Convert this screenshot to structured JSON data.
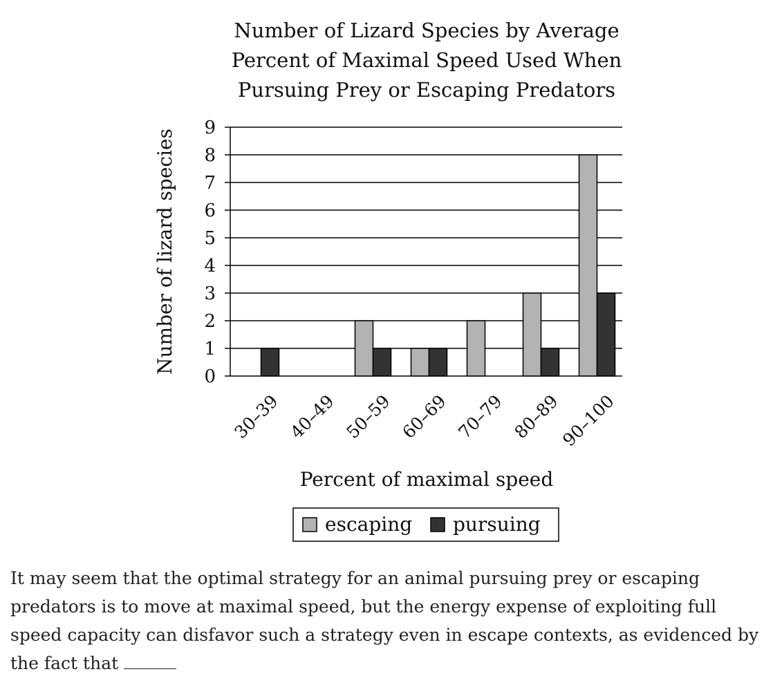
{
  "chart_data": {
    "type": "bar",
    "title_lines": [
      "Number of Lizard Species by Average",
      "Percent of Maximal Speed Used When",
      "Pursuing Prey or Escaping Predators"
    ],
    "xlabel": "Percent of maximal speed",
    "ylabel": "Number of lizard species",
    "categories": [
      "30–39",
      "40–49",
      "50–59",
      "60–69",
      "70–79",
      "80–89",
      "90–100"
    ],
    "series": [
      {
        "name": "escaping",
        "color": "#b3b3b3",
        "values": [
          0,
          0,
          2,
          1,
          2,
          3,
          8
        ]
      },
      {
        "name": "pursuing",
        "color": "#333333",
        "values": [
          1,
          0,
          1,
          1,
          0,
          1,
          3
        ]
      }
    ],
    "ylim": [
      0,
      9
    ],
    "yticks": [
      "0",
      "1",
      "2",
      "3",
      "4",
      "5",
      "6",
      "7",
      "8",
      "9"
    ],
    "grid": true,
    "legend_position": "bottom"
  },
  "question": {
    "text": "It may seem that the optimal strategy for an animal pursuing prey or escaping predators is to move at maximal speed, but the energy expense of exploiting full speed capacity can disfavor such a strategy even in escape contexts, as evidenced by the fact that"
  }
}
